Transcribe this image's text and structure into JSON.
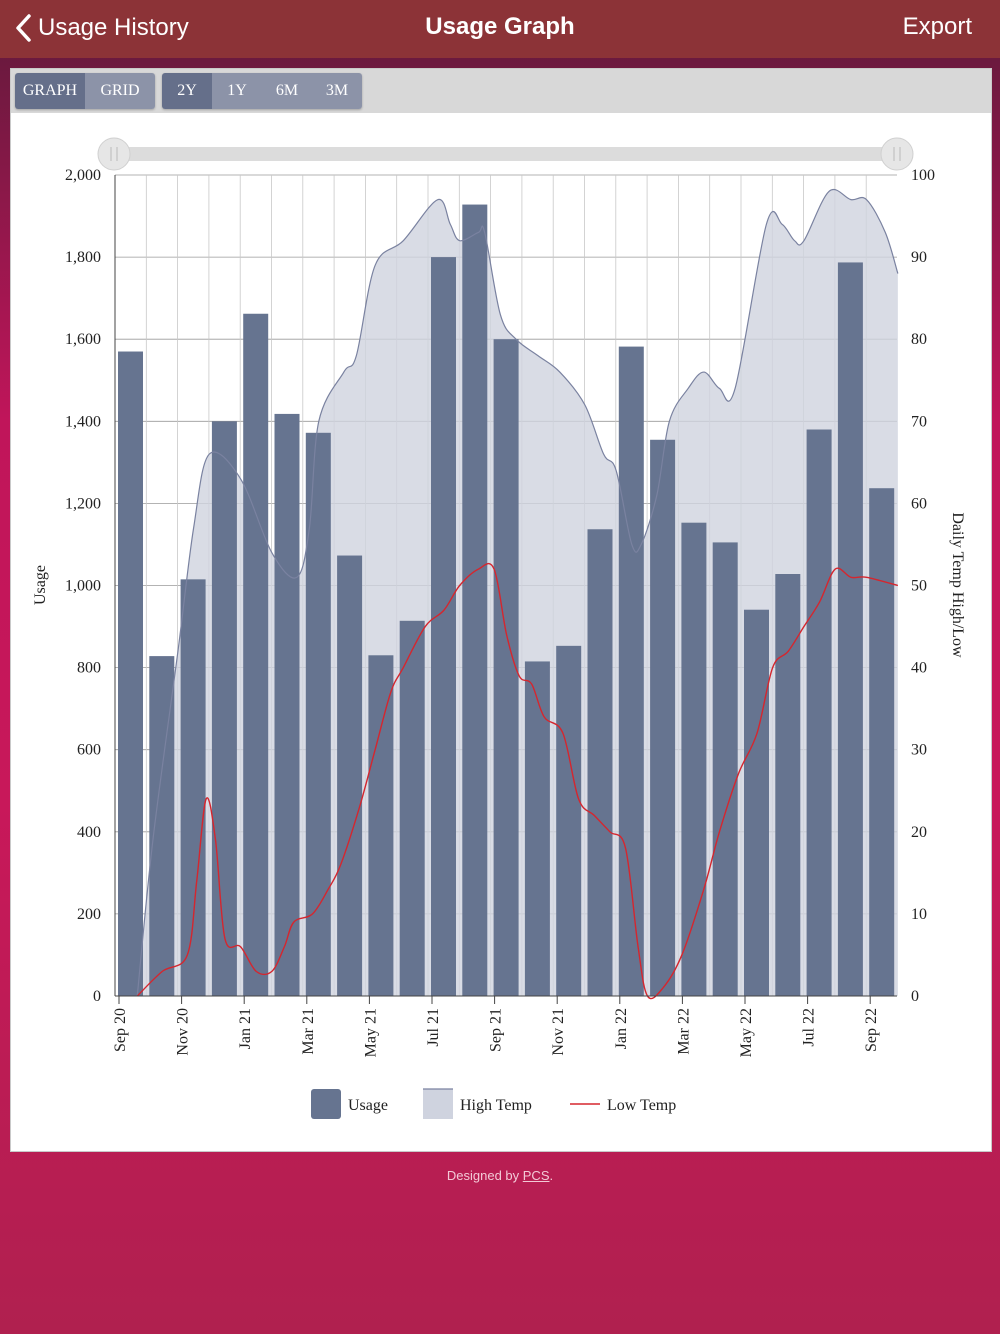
{
  "nav": {
    "back_label": "Usage History",
    "title": "Usage Graph",
    "export_label": "Export"
  },
  "view_toggle": [
    "GRAPH",
    "GRID"
  ],
  "view_selected": "GRAPH",
  "range_toggle": [
    "2Y",
    "1Y",
    "6M",
    "3M"
  ],
  "range_selected": "2Y",
  "footer": {
    "prefix": "Designed by ",
    "link": "PCS",
    "suffix": "."
  },
  "colors": {
    "bar": "#667490",
    "high_fill": "#cfd3df",
    "high_line": "#7a82a0",
    "low_line": "#d5262e",
    "nav": "#8c3337"
  },
  "chart_data": {
    "type": "bar+line",
    "y_left": {
      "label": "Usage",
      "min": 0,
      "max": 2000,
      "ticks": [
        0,
        200,
        400,
        600,
        800,
        1000,
        1200,
        1400,
        1600,
        1800,
        2000
      ],
      "tick_labels": [
        "0",
        "200",
        "400",
        "600",
        "800",
        "1,000",
        "1,200",
        "1,400",
        "1,600",
        "1,800",
        "2,000"
      ]
    },
    "y_right": {
      "label": "Daily Temp High/Low",
      "min": 0,
      "max": 100,
      "ticks": [
        0,
        10,
        20,
        30,
        40,
        50,
        60,
        70,
        80,
        90,
        100
      ]
    },
    "x_ticks": [
      {
        "label": "Sep 20",
        "m": 0
      },
      {
        "label": "Nov 20",
        "m": 2
      },
      {
        "label": "Jan 21",
        "m": 4
      },
      {
        "label": "Mar 21",
        "m": 6
      },
      {
        "label": "May 21",
        "m": 8
      },
      {
        "label": "Jul 21",
        "m": 10
      },
      {
        "label": "Sep 21",
        "m": 12
      },
      {
        "label": "Nov 21",
        "m": 14
      },
      {
        "label": "Jan 22",
        "m": 16
      },
      {
        "label": "Mar 22",
        "m": 18
      },
      {
        "label": "May 22",
        "m": 20
      },
      {
        "label": "Jul 22",
        "m": 22
      },
      {
        "label": "Sep 22",
        "m": 24
      }
    ],
    "usage": [
      1570,
      828,
      1015,
      1400,
      1662,
      1418,
      1372,
      1073,
      830,
      914,
      1800,
      1928,
      1600,
      815,
      853,
      1137,
      1582,
      1355,
      1153,
      1105,
      941,
      1028,
      1380,
      1787,
      1237
    ],
    "high_temp": [
      [
        0.2,
        0
      ],
      [
        0.7,
        19
      ],
      [
        1.5,
        42
      ],
      [
        2,
        57
      ],
      [
        2.5,
        66
      ],
      [
        3.5,
        63
      ],
      [
        4.5,
        54
      ],
      [
        5.3,
        51
      ],
      [
        5.7,
        57
      ],
      [
        6,
        70
      ],
      [
        6.8,
        76
      ],
      [
        7.2,
        78
      ],
      [
        7.8,
        89
      ],
      [
        8.7,
        92
      ],
      [
        9.8,
        97
      ],
      [
        10.2,
        94
      ],
      [
        10.5,
        92
      ],
      [
        11.1,
        93
      ],
      [
        11.3,
        93
      ],
      [
        11.8,
        83
      ],
      [
        12.3,
        80
      ],
      [
        13,
        78
      ],
      [
        13.7,
        76
      ],
      [
        14.5,
        72
      ],
      [
        15.1,
        66
      ],
      [
        15.5,
        64
      ],
      [
        16,
        55
      ],
      [
        16.3,
        55
      ],
      [
        16.8,
        61
      ],
      [
        17.2,
        70
      ],
      [
        17.8,
        74
      ],
      [
        18.3,
        76
      ],
      [
        18.8,
        74
      ],
      [
        19.3,
        74
      ],
      [
        20.3,
        94
      ],
      [
        20.8,
        94
      ],
      [
        21.2,
        92
      ],
      [
        21.5,
        92
      ],
      [
        22.3,
        98
      ],
      [
        23,
        97
      ],
      [
        23.5,
        97
      ],
      [
        24.1,
        93
      ],
      [
        24.5,
        88
      ]
    ],
    "low_temp": [
      [
        0.2,
        0
      ],
      [
        1,
        3
      ],
      [
        1.8,
        5
      ],
      [
        2.1,
        14
      ],
      [
        2.4,
        24
      ],
      [
        2.7,
        19
      ],
      [
        3,
        7
      ],
      [
        3.5,
        6
      ],
      [
        4,
        3
      ],
      [
        4.5,
        3
      ],
      [
        4.9,
        6
      ],
      [
        5.2,
        9
      ],
      [
        5.8,
        10
      ],
      [
        6.3,
        13
      ],
      [
        6.7,
        16
      ],
      [
        7.3,
        23
      ],
      [
        7.8,
        30
      ],
      [
        8.3,
        37
      ],
      [
        8.7,
        40
      ],
      [
        9.4,
        45
      ],
      [
        10,
        47
      ],
      [
        10.5,
        50
      ],
      [
        11.1,
        52
      ],
      [
        11.6,
        52
      ],
      [
        12,
        44
      ],
      [
        12.4,
        39
      ],
      [
        12.8,
        38
      ],
      [
        13.2,
        34
      ],
      [
        13.8,
        32
      ],
      [
        14.3,
        24
      ],
      [
        14.8,
        22
      ],
      [
        15.3,
        20
      ],
      [
        15.8,
        18
      ],
      [
        16.2,
        6
      ],
      [
        16.5,
        0
      ],
      [
        17,
        1
      ],
      [
        17.6,
        5
      ],
      [
        18.3,
        13
      ],
      [
        18.8,
        20
      ],
      [
        19.4,
        27
      ],
      [
        20,
        32
      ],
      [
        20.5,
        40
      ],
      [
        21,
        42
      ],
      [
        21.5,
        45
      ],
      [
        22,
        48
      ],
      [
        22.5,
        52
      ],
      [
        23,
        51
      ],
      [
        23.5,
        51
      ],
      [
        24.5,
        50
      ]
    ],
    "legend": [
      "Usage",
      "High Temp",
      "Low Temp"
    ]
  }
}
